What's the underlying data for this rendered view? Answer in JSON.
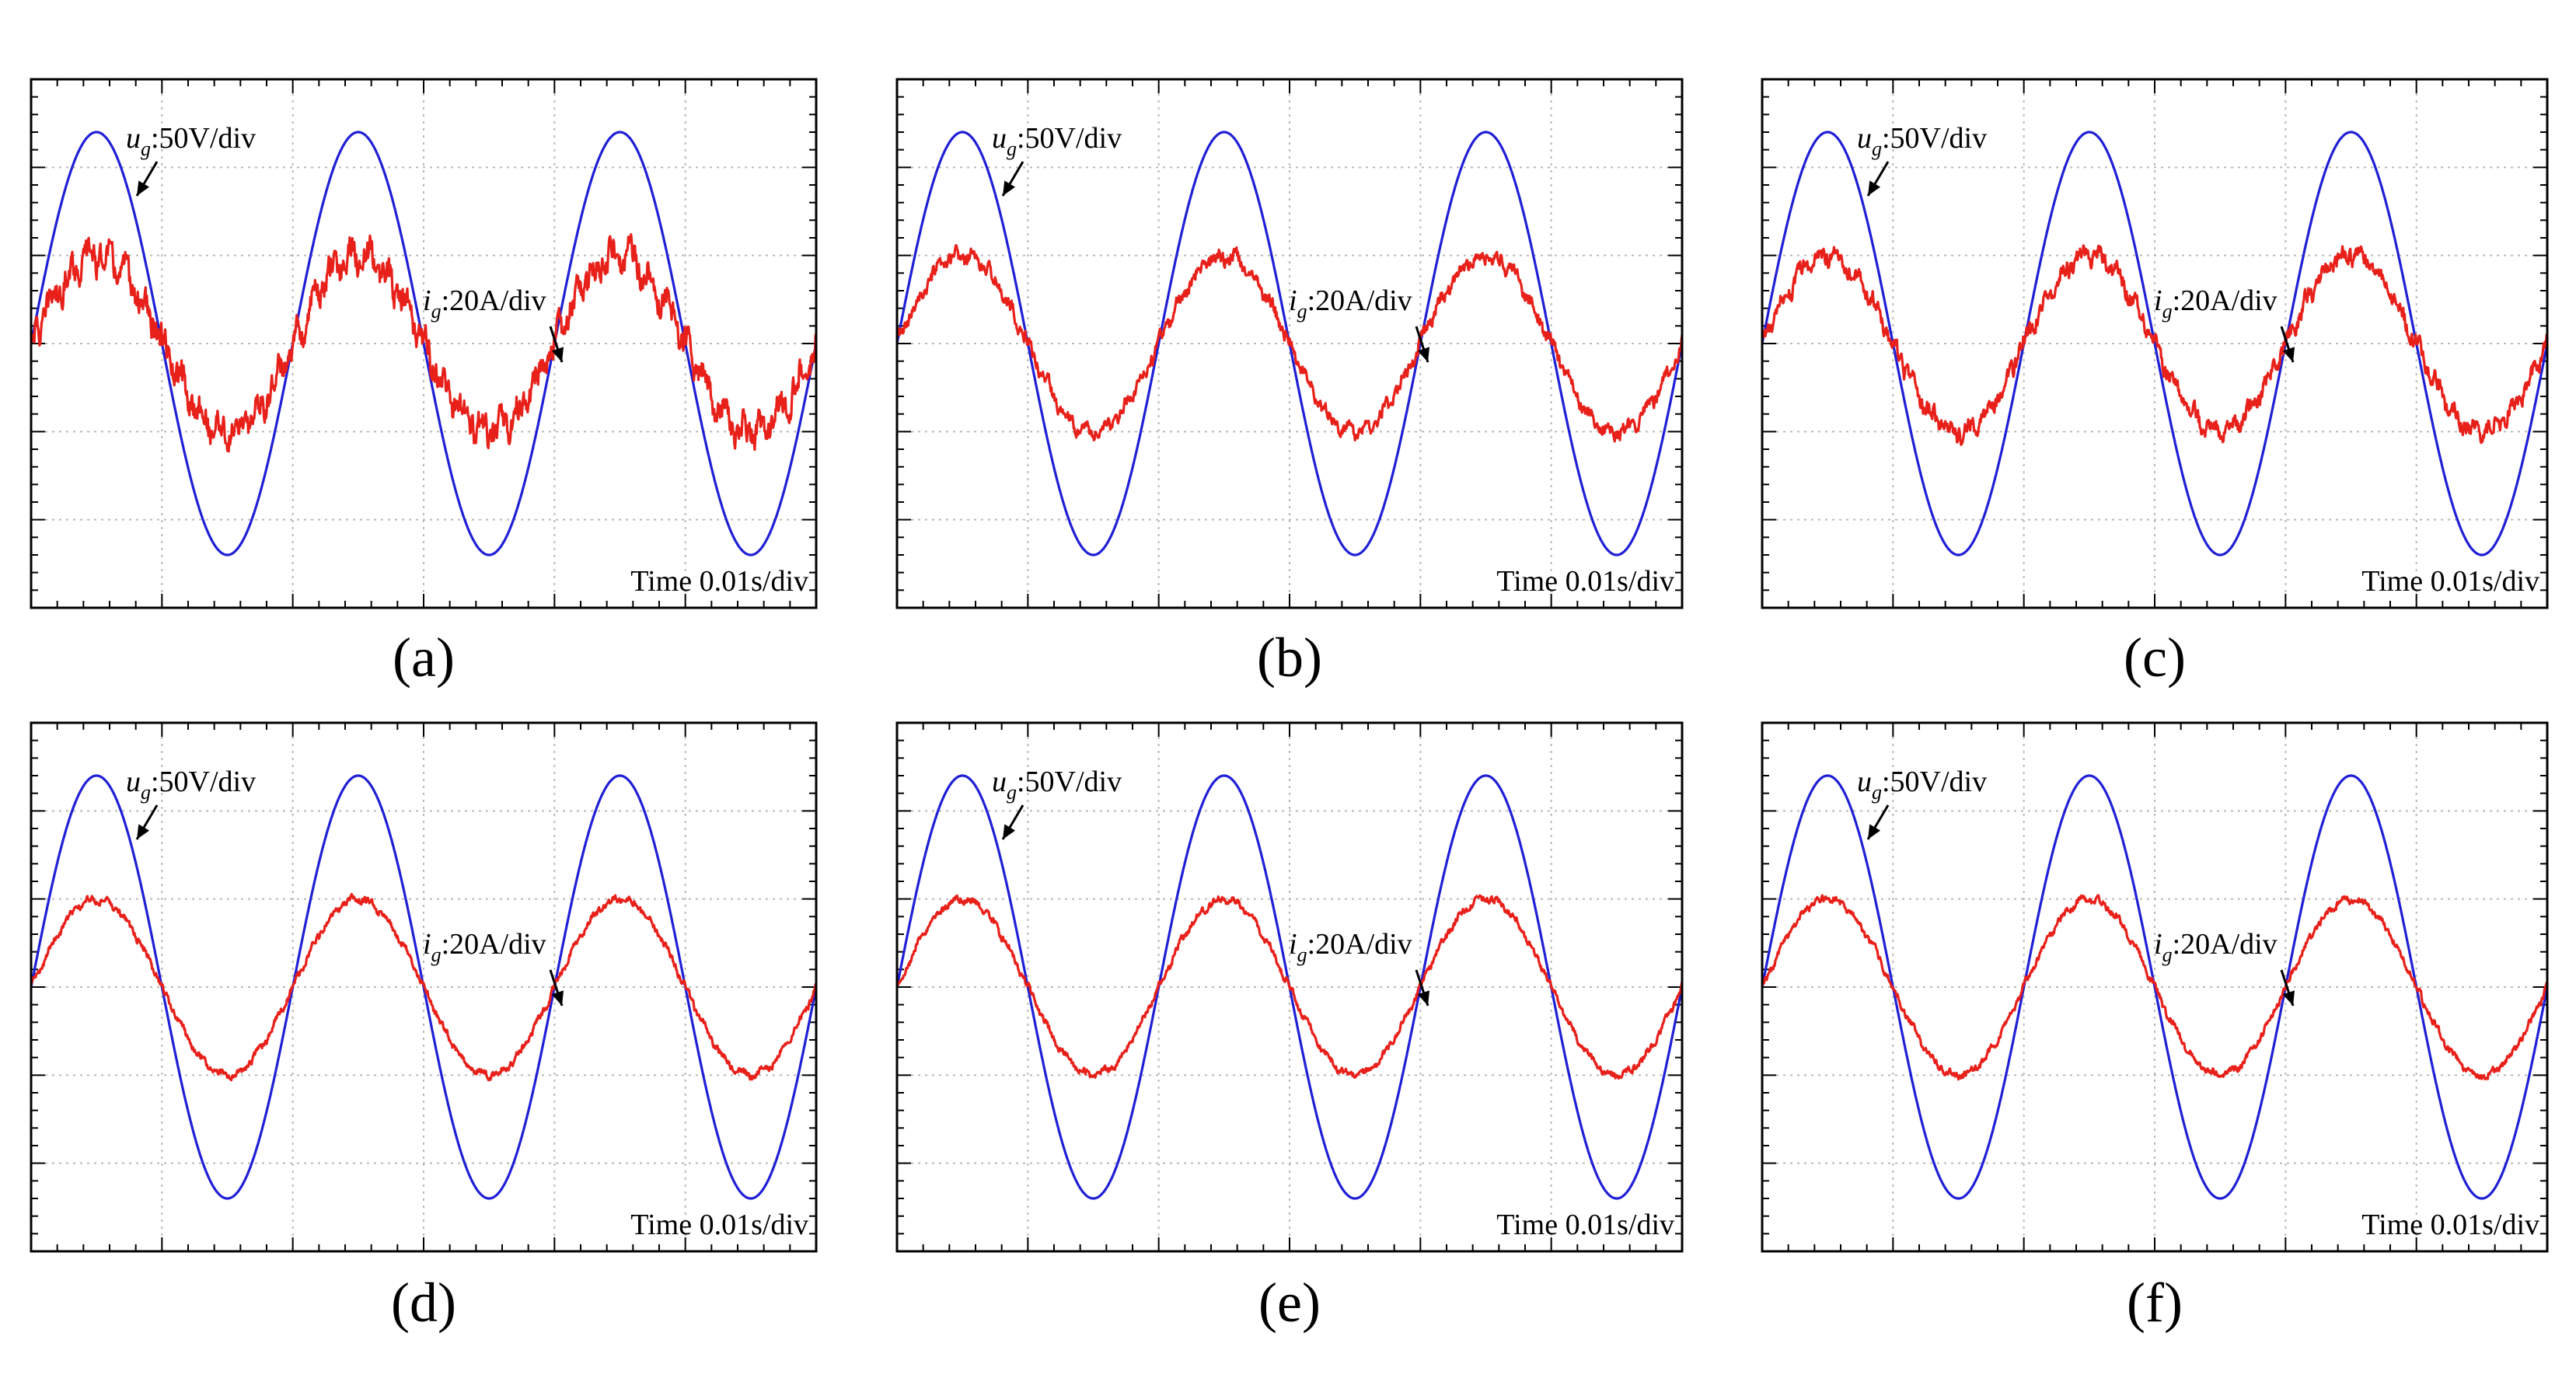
{
  "figure": {
    "panels": [
      "a",
      "b",
      "c",
      "d",
      "e",
      "f"
    ]
  },
  "chart_data": [
    {
      "panel": "a",
      "caption": "(a)",
      "type": "line",
      "title": "",
      "xlabel": "",
      "ylabel": "",
      "grid": true,
      "xlim": [
        0,
        0.06
      ],
      "ylim": [
        -3,
        3
      ],
      "time_label": "Time 0.01s/div",
      "annotations": {
        "voltage": {
          "symbol": "u",
          "subscript": "g",
          "scale": ":50V/div"
        },
        "current": {
          "symbol": "i",
          "subscript": "g",
          "scale": ":20A/div"
        }
      },
      "series": [
        {
          "name": "u_g",
          "color": "#1f1fd6",
          "unit": "div",
          "amplitude": 2.4,
          "frequency_hz": 50,
          "phase_deg": 0,
          "ripple": 0
        },
        {
          "name": "i_g",
          "color": "#e8201a",
          "unit": "div",
          "amplitude": 1.0,
          "frequency_hz": 50,
          "phase_deg": 0,
          "ripple": 0.17
        }
      ]
    },
    {
      "panel": "b",
      "caption": "(b)",
      "type": "line",
      "title": "",
      "xlabel": "",
      "ylabel": "",
      "grid": true,
      "xlim": [
        0,
        0.06
      ],
      "ylim": [
        -3,
        3
      ],
      "time_label": "Time 0.01s/div",
      "annotations": {
        "voltage": {
          "symbol": "u",
          "subscript": "g",
          "scale": ":50V/div"
        },
        "current": {
          "symbol": "i",
          "subscript": "g",
          "scale": ":20A/div"
        }
      },
      "series": [
        {
          "name": "u_g",
          "color": "#1f1fd6",
          "unit": "div",
          "amplitude": 2.4,
          "frequency_hz": 50,
          "phase_deg": 0,
          "ripple": 0
        },
        {
          "name": "i_g",
          "color": "#e8201a",
          "unit": "div",
          "amplitude": 1.0,
          "frequency_hz": 50,
          "phase_deg": 0,
          "ripple": 0.08
        }
      ]
    },
    {
      "panel": "c",
      "caption": "(c)",
      "type": "line",
      "title": "",
      "xlabel": "",
      "ylabel": "",
      "grid": true,
      "xlim": [
        0,
        0.06
      ],
      "ylim": [
        -3,
        3
      ],
      "time_label": "Time 0.01s/div",
      "annotations": {
        "voltage": {
          "symbol": "u",
          "subscript": "g",
          "scale": ":50V/div"
        },
        "current": {
          "symbol": "i",
          "subscript": "g",
          "scale": ":20A/div"
        }
      },
      "series": [
        {
          "name": "u_g",
          "color": "#1f1fd6",
          "unit": "div",
          "amplitude": 2.4,
          "frequency_hz": 50,
          "phase_deg": 0,
          "ripple": 0
        },
        {
          "name": "i_g",
          "color": "#e8201a",
          "unit": "div",
          "amplitude": 1.0,
          "frequency_hz": 50,
          "phase_deg": 0,
          "ripple": 0.1
        }
      ]
    },
    {
      "panel": "d",
      "caption": "(d)",
      "type": "line",
      "title": "",
      "xlabel": "",
      "ylabel": "",
      "grid": true,
      "xlim": [
        0,
        0.06
      ],
      "ylim": [
        -3,
        3
      ],
      "time_label": "Time 0.01s/div",
      "annotations": {
        "voltage": {
          "symbol": "u",
          "subscript": "g",
          "scale": ":50V/div"
        },
        "current": {
          "symbol": "i",
          "subscript": "g",
          "scale": ":20A/div"
        }
      },
      "series": [
        {
          "name": "u_g",
          "color": "#1f1fd6",
          "unit": "div",
          "amplitude": 2.4,
          "frequency_hz": 50,
          "phase_deg": 0,
          "ripple": 0
        },
        {
          "name": "i_g",
          "color": "#e8201a",
          "unit": "div",
          "amplitude": 1.0,
          "frequency_hz": 50,
          "phase_deg": 0,
          "ripple": 0.04
        }
      ]
    },
    {
      "panel": "e",
      "caption": "(e)",
      "type": "line",
      "title": "",
      "xlabel": "",
      "ylabel": "",
      "grid": true,
      "xlim": [
        0,
        0.06
      ],
      "ylim": [
        -3,
        3
      ],
      "time_label": "Time 0.01s/div",
      "annotations": {
        "voltage": {
          "symbol": "u",
          "subscript": "g",
          "scale": ":50V/div"
        },
        "current": {
          "symbol": "i",
          "subscript": "g",
          "scale": ":20A/div"
        }
      },
      "series": [
        {
          "name": "u_g",
          "color": "#1f1fd6",
          "unit": "div",
          "amplitude": 2.4,
          "frequency_hz": 50,
          "phase_deg": 0,
          "ripple": 0
        },
        {
          "name": "i_g",
          "color": "#e8201a",
          "unit": "div",
          "amplitude": 1.0,
          "frequency_hz": 50,
          "phase_deg": 0,
          "ripple": 0.04
        }
      ]
    },
    {
      "panel": "f",
      "caption": "(f)",
      "type": "line",
      "title": "",
      "xlabel": "",
      "ylabel": "",
      "grid": true,
      "xlim": [
        0,
        0.06
      ],
      "ylim": [
        -3,
        3
      ],
      "time_label": "Time 0.01s/div",
      "annotations": {
        "voltage": {
          "symbol": "u",
          "subscript": "g",
          "scale": ":50V/div"
        },
        "current": {
          "symbol": "i",
          "subscript": "g",
          "scale": ":20A/div"
        }
      },
      "series": [
        {
          "name": "u_g",
          "color": "#1f1fd6",
          "unit": "div",
          "amplitude": 2.4,
          "frequency_hz": 50,
          "phase_deg": 0,
          "ripple": 0
        },
        {
          "name": "i_g",
          "color": "#e8201a",
          "unit": "div",
          "amplitude": 1.0,
          "frequency_hz": 50,
          "phase_deg": 0,
          "ripple": 0.04
        }
      ]
    }
  ]
}
